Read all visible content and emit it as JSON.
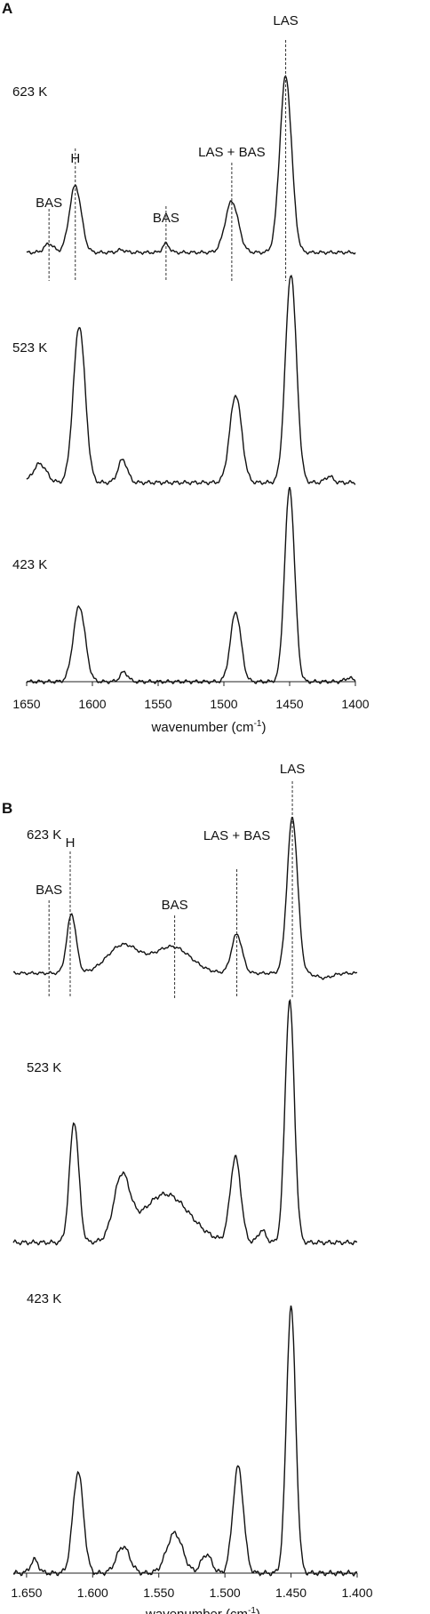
{
  "chart_data": [
    {
      "type": "line",
      "panel_label": "A",
      "xlabel": "wavenumber (cm",
      "xlabel_sup": "-1",
      "xlabel_close": ")",
      "xlim": [
        1650,
        1400
      ],
      "x_ticks": [
        1650,
        1600,
        1550,
        1500,
        1450,
        1400
      ],
      "x_tick_labels": [
        "1650",
        "1600",
        "1550",
        "1500",
        "1450",
        "1400"
      ],
      "annotations": [
        {
          "text": "BAS",
          "x": 1633
        },
        {
          "text": "H",
          "x": 1613
        },
        {
          "text": "BAS",
          "x": 1544
        },
        {
          "text": "LAS + BAS",
          "x": 1494
        },
        {
          "text": "LAS",
          "x": 1453
        }
      ],
      "series": [
        {
          "name": "623 K",
          "baseline": 0.02,
          "peaks": [
            [
              1633,
              0.05,
              3.5
            ],
            [
              1613,
              0.38,
              4.5
            ],
            [
              1544,
              0.05,
              2.5
            ],
            [
              1494,
              0.29,
              5
            ],
            [
              1453,
              1.0,
              4.5
            ],
            [
              1578,
              0.015,
              3
            ]
          ]
        },
        {
          "name": "523 K",
          "baseline": 0.03,
          "peaks": [
            [
              1640,
              0.09,
              5
            ],
            [
              1610,
              0.75,
              4.5
            ],
            [
              1577,
              0.11,
              3.5
            ],
            [
              1491,
              0.42,
              4.5
            ],
            [
              1449,
              1.0,
              4.2
            ],
            [
              1420,
              0.03,
              3
            ]
          ]
        },
        {
          "name": "423 K",
          "baseline": 0.0,
          "peaks": [
            [
              1610,
              0.39,
              4.5
            ],
            [
              1576,
              0.05,
              3
            ],
            [
              1491,
              0.36,
              4
            ],
            [
              1450,
              1.0,
              3.8
            ],
            [
              1405,
              0.02,
              3
            ]
          ]
        }
      ]
    },
    {
      "type": "line",
      "panel_label": "B",
      "xlabel": "wavenumber (cm",
      "xlabel_sup": "-1",
      "xlabel_close": ")",
      "xlim": [
        1660,
        1400
      ],
      "x_ticks": [
        1650,
        1600,
        1550,
        1500,
        1450,
        1400
      ],
      "x_tick_labels": [
        "1.650",
        "1.600",
        "1.550",
        "1.500",
        "1.450",
        "1.400"
      ],
      "annotations": [
        {
          "text": "BAS",
          "x": 1633
        },
        {
          "text": "H",
          "x": 1617
        },
        {
          "text": "BAS",
          "x": 1538
        },
        {
          "text": "LAS + BAS",
          "x": 1491
        },
        {
          "text": "LAS",
          "x": 1449
        }
      ],
      "series": [
        {
          "name": "623 K",
          "baseline": 0.0,
          "peaks": [
            [
              1616,
              0.38,
              3.5
            ],
            [
              1577,
              0.18,
              12
            ],
            [
              1540,
              0.17,
              14
            ],
            [
              1491,
              0.25,
              4
            ],
            [
              1449,
              1.0,
              4
            ],
            [
              1425,
              -0.03,
              6
            ]
          ]
        },
        {
          "name": "523 K",
          "baseline": 0.0,
          "peaks": [
            [
              1614,
              0.5,
              3.5
            ],
            [
              1578,
              0.25,
              6
            ],
            [
              1545,
              0.2,
              18
            ],
            [
              1492,
              0.35,
              4
            ],
            [
              1472,
              0.05,
              3
            ],
            [
              1451,
              1.0,
              3.5
            ]
          ]
        },
        {
          "name": "423 K",
          "baseline": 0.0,
          "peaks": [
            [
              1644,
              0.05,
              3
            ],
            [
              1611,
              0.38,
              4
            ],
            [
              1577,
              0.1,
              5
            ],
            [
              1538,
              0.15,
              6
            ],
            [
              1514,
              0.07,
              4
            ],
            [
              1490,
              0.4,
              4
            ],
            [
              1450,
              1.0,
              3.5
            ]
          ]
        }
      ]
    }
  ]
}
